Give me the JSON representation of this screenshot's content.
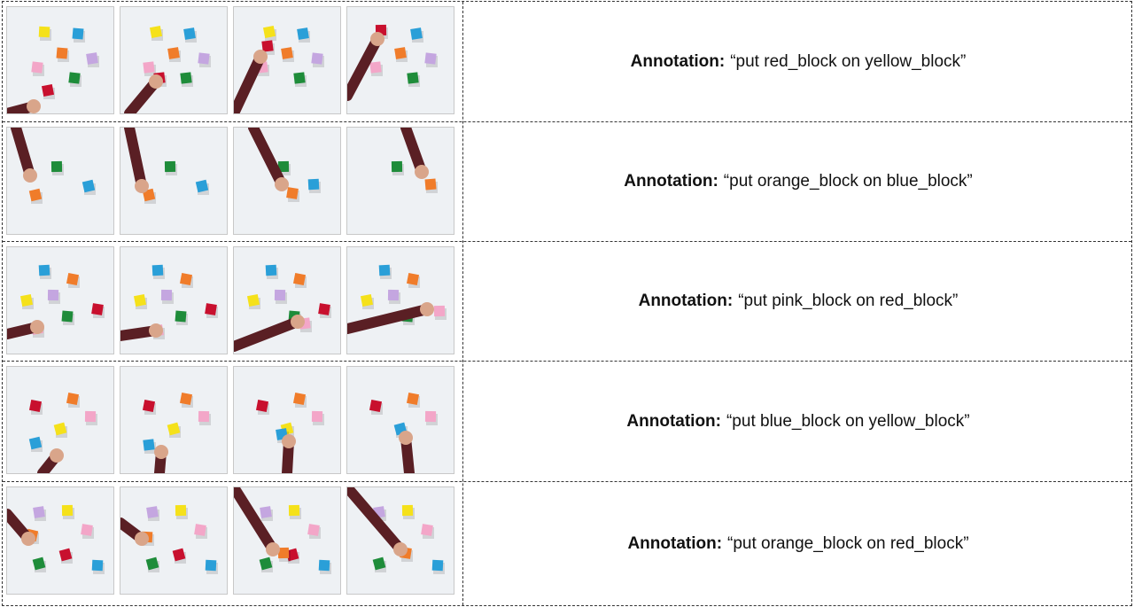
{
  "rows": [
    {
      "label": "Annotation:",
      "text": "“put red_block on yellow_block”"
    },
    {
      "label": "Annotation:",
      "text": "“put orange_block on blue_block”"
    },
    {
      "label": "Annotation:",
      "text": "“put pink_block on red_block”"
    },
    {
      "label": "Annotation:",
      "text": "“put blue_block on yellow_block”"
    },
    {
      "label": "Annotation:",
      "text": "“put orange_block on red_block”"
    }
  ],
  "block_colors": {
    "red": "#c8102e",
    "yellow": "#f5e11a",
    "blue": "#2a9fd8",
    "orange": "#f07c2a",
    "green": "#1e8c3a",
    "pink": "#f3a6c8",
    "purple": "#c4a6e0"
  }
}
